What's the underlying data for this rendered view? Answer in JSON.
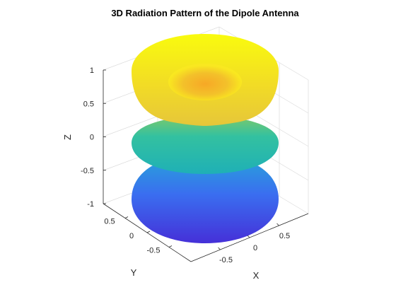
{
  "chart_data": {
    "type": "surface",
    "title": "3D Radiation Pattern of the Dipole Antenna",
    "xlabel": "X",
    "ylabel": "Y",
    "zlabel": "Z",
    "xlim": [
      -1,
      1
    ],
    "ylim": [
      -1,
      1
    ],
    "zlim": [
      -1,
      1
    ],
    "x_ticks": [
      -0.5,
      0,
      0.5
    ],
    "y_ticks": [
      -0.5,
      0,
      0.5
    ],
    "z_ticks": [
      -1,
      -0.5,
      0,
      0.5,
      1
    ],
    "x_tick_labels": [
      "-0.5",
      "0",
      "0.5"
    ],
    "y_tick_labels": [
      "-0.5",
      "0",
      "0.5"
    ],
    "z_tick_labels": [
      "-1",
      "-0.5",
      "0",
      "0.5",
      "1"
    ],
    "grid": true,
    "colormap": "parula",
    "colors": {
      "low": "#3e26a8",
      "mid": "#2fbeab",
      "high": "#f9fb0e",
      "peak": "#fbb61a"
    },
    "lobes": [
      {
        "shape": "torus",
        "z_range": [
          0.45,
          1.0
        ],
        "max_radius": 0.55
      },
      {
        "shape": "disc",
        "z_range": [
          -0.2,
          0.2
        ],
        "max_radius": 0.55
      },
      {
        "shape": "dome",
        "z_range": [
          -1.0,
          -0.4
        ],
        "max_radius": 0.55
      }
    ]
  }
}
